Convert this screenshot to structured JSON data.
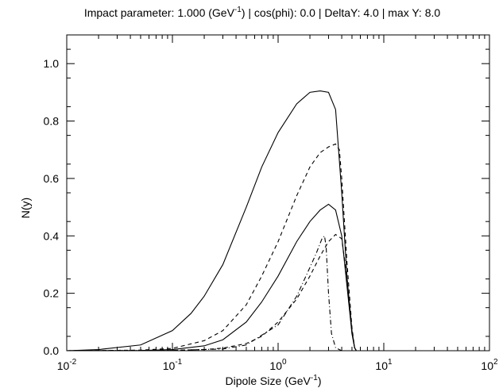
{
  "chart_data": {
    "type": "line",
    "title": {
      "prefix": "Impact parameter: 1.000 (GeV",
      "sup": "-1",
      "suffix": ") | cos(phi): 0.0 | DeltaY: 4.0 | max Y: 8.0"
    },
    "xlabel": {
      "prefix": "Dipole Size (GeV",
      "sup": "-1",
      "suffix": ")"
    },
    "ylabel": "N(y)",
    "x_scale": "log",
    "xlim": [
      0.01,
      100
    ],
    "ylim": [
      0,
      1.1
    ],
    "x_ticks": [
      {
        "base": "10",
        "exp": "-2",
        "value": 0.01
      },
      {
        "base": "10",
        "exp": "-1",
        "value": 0.1
      },
      {
        "base": "10",
        "exp": "0",
        "value": 1
      },
      {
        "base": "10",
        "exp": "1",
        "value": 10
      },
      {
        "base": "10",
        "exp": "2",
        "value": 100
      }
    ],
    "y_ticks": [
      {
        "label": "0.0",
        "value": 0.0
      },
      {
        "label": "0.2",
        "value": 0.2
      },
      {
        "label": "0.4",
        "value": 0.4
      },
      {
        "label": "0.6",
        "value": 0.6
      },
      {
        "label": "0.8",
        "value": 0.8
      },
      {
        "label": "1.0",
        "value": 1.0
      }
    ],
    "grid": false,
    "series": [
      {
        "style": "solid",
        "x": [
          0.01,
          0.02,
          0.05,
          0.1,
          0.15,
          0.2,
          0.3,
          0.5,
          0.7,
          1.0,
          1.5,
          2.0,
          2.5,
          3.0,
          3.5,
          4.0,
          4.5,
          5.0,
          5.3,
          5.5,
          10,
          100
        ],
        "y": [
          0.0,
          0.004,
          0.02,
          0.07,
          0.13,
          0.19,
          0.3,
          0.5,
          0.64,
          0.76,
          0.86,
          0.9,
          0.905,
          0.9,
          0.84,
          0.55,
          0.25,
          0.06,
          0.01,
          0.0,
          0.0,
          0.0
        ]
      },
      {
        "style": "dashed",
        "x": [
          0.01,
          0.05,
          0.1,
          0.2,
          0.3,
          0.5,
          0.7,
          1.0,
          1.5,
          2.0,
          2.5,
          3.0,
          3.5,
          3.8,
          4.0,
          4.5,
          5.0,
          5.3,
          5.5,
          10,
          100
        ],
        "y": [
          0.0,
          0.002,
          0.008,
          0.035,
          0.07,
          0.16,
          0.26,
          0.38,
          0.54,
          0.64,
          0.69,
          0.71,
          0.72,
          0.7,
          0.6,
          0.3,
          0.08,
          0.01,
          0.0,
          0.0,
          0.0
        ]
      },
      {
        "style": "solid",
        "x": [
          0.01,
          0.05,
          0.1,
          0.2,
          0.3,
          0.5,
          0.7,
          1.0,
          1.5,
          2.0,
          2.5,
          3.0,
          3.5,
          4.0,
          4.5,
          5.0,
          5.3,
          5.5,
          10,
          100
        ],
        "y": [
          0.0,
          0.001,
          0.004,
          0.017,
          0.038,
          0.1,
          0.17,
          0.26,
          0.38,
          0.45,
          0.49,
          0.51,
          0.49,
          0.4,
          0.22,
          0.06,
          0.01,
          0.0,
          0.0,
          0.0
        ]
      },
      {
        "style": "dashed",
        "x": [
          0.01,
          0.1,
          0.2,
          0.3,
          0.5,
          0.7,
          1.0,
          1.5,
          2.0,
          2.5,
          3.0,
          3.5,
          4.0,
          4.5,
          5.0,
          5.3,
          5.5,
          10,
          100
        ],
        "y": [
          0.0,
          0.001,
          0.004,
          0.009,
          0.025,
          0.05,
          0.1,
          0.18,
          0.26,
          0.33,
          0.38,
          0.405,
          0.39,
          0.25,
          0.07,
          0.01,
          0.0,
          0.0,
          0.0
        ]
      },
      {
        "style": "dashdot",
        "x": [
          0.01,
          0.1,
          0.3,
          0.5,
          1.0,
          1.5,
          2.0,
          2.3,
          2.6,
          2.75,
          2.85,
          3.0,
          3.2,
          3.5,
          4.0,
          10,
          100
        ],
        "y": [
          0.0,
          0.001,
          0.006,
          0.02,
          0.09,
          0.19,
          0.29,
          0.34,
          0.39,
          0.4,
          0.36,
          0.2,
          0.06,
          0.01,
          0.0,
          0.0,
          0.0
        ]
      }
    ]
  }
}
